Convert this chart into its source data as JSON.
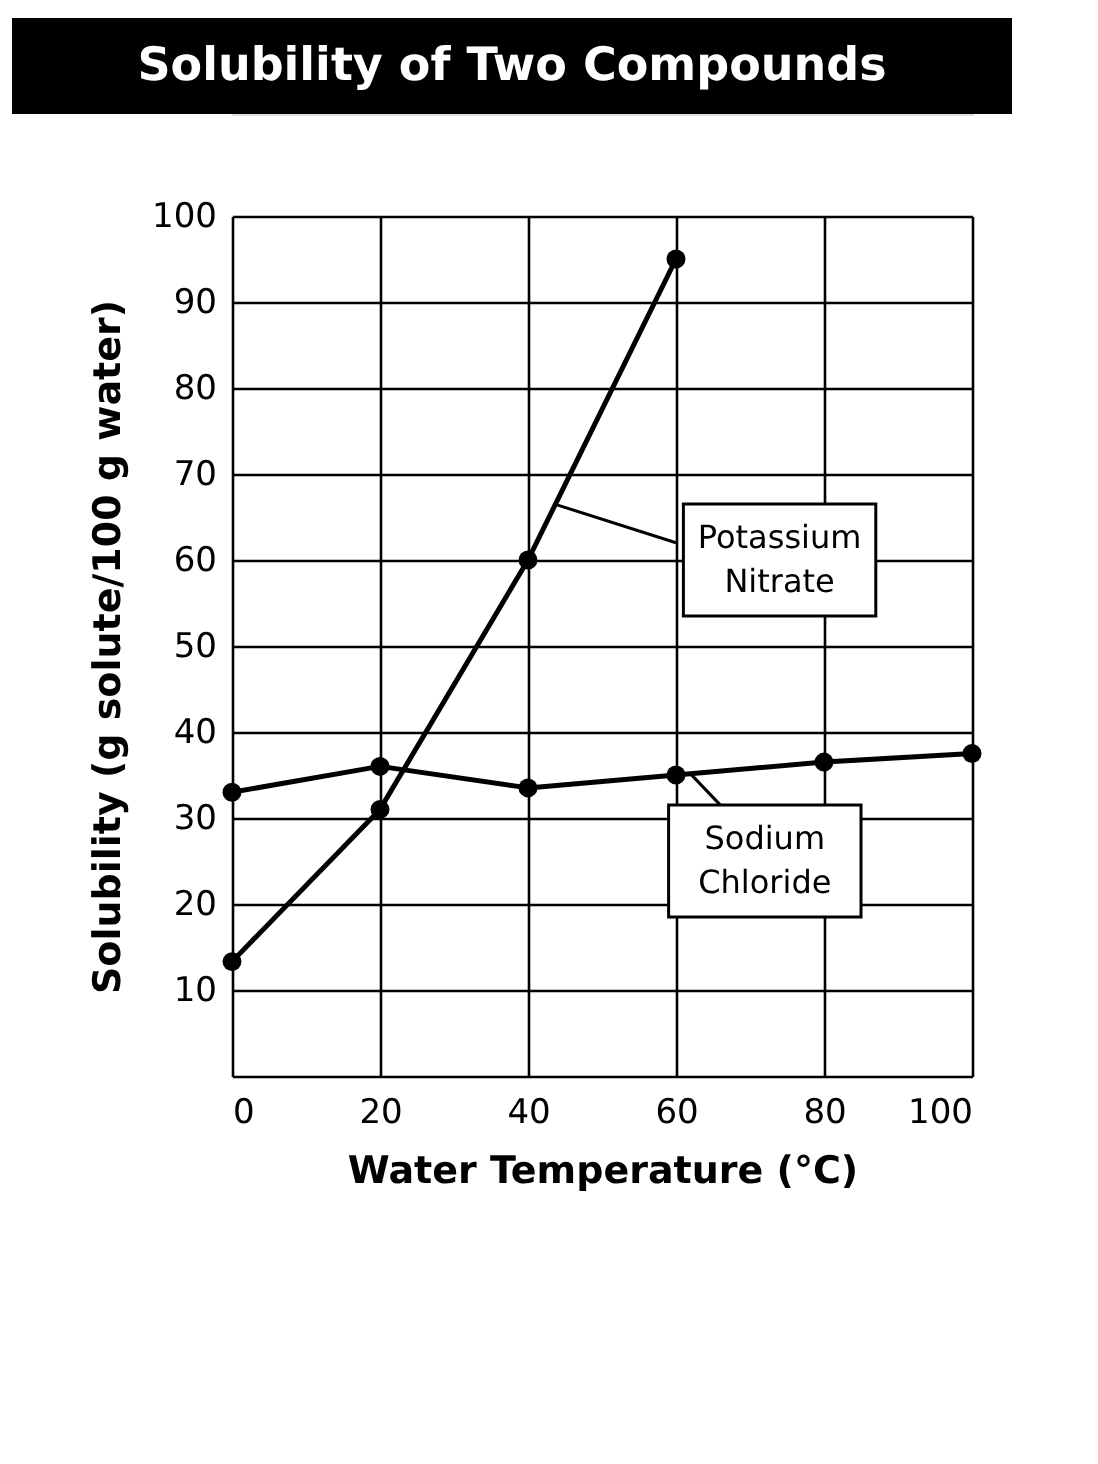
{
  "chart_data": {
    "type": "line",
    "title": "Solubility of Two Compounds",
    "xlabel": "Water Temperature (°C)",
    "ylabel": "Solubility (g solute/100 g water)",
    "xlim": [
      0,
      100
    ],
    "xticks": [
      0,
      20,
      40,
      60,
      80,
      100
    ],
    "ylim": [
      0,
      100
    ],
    "yticks": [
      {
        "value": 0,
        "label": null
      },
      10,
      20,
      30,
      40,
      50,
      60,
      70,
      80,
      90,
      100
    ],
    "grid": true,
    "marker": "circle",
    "line_style": "solid",
    "series": [
      {
        "name": "Potassium Nitrate",
        "color": "#000000",
        "x": [
          0,
          20,
          40,
          60
        ],
        "values": [
          13.3,
          31,
          60,
          95
        ]
      },
      {
        "name": "Sodium Chloride",
        "color": "#000000",
        "x": [
          0,
          20,
          40,
          60,
          80,
          100
        ],
        "values": [
          33,
          36,
          33.5,
          35,
          36.5,
          37.5
        ]
      }
    ]
  }
}
